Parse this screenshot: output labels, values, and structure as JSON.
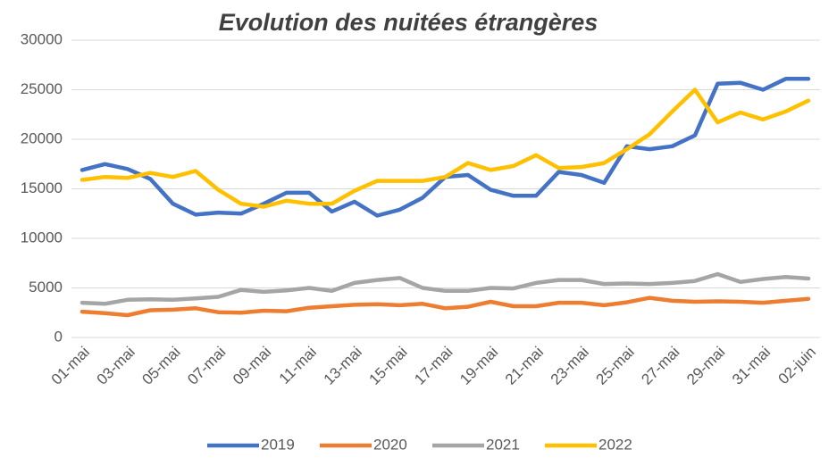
{
  "chart_data": {
    "type": "line",
    "title": "Evolution des nuitées étrangères",
    "categories": [
      "01-mai",
      null,
      "03-mai",
      null,
      "05-mai",
      null,
      "07-mai",
      null,
      "09-mai",
      null,
      "11-mai",
      null,
      "13-mai",
      null,
      "15-mai",
      null,
      "17-mai",
      null,
      "19-mai",
      null,
      "21-mai",
      null,
      "23-mai",
      null,
      "25-mai",
      null,
      "27-mai",
      null,
      "29-mai",
      null,
      "31-mai",
      null,
      "02-juin"
    ],
    "series": [
      {
        "name": "2019",
        "color": "#4472c4",
        "values": [
          16900,
          17500,
          17000,
          16000,
          13500,
          12400,
          12600,
          12500,
          13500,
          14600,
          14600,
          12700,
          13700,
          12300,
          12900,
          14100,
          16200,
          16400,
          14900,
          14300,
          14300,
          16700,
          16400,
          15600,
          19300,
          19000,
          19300,
          20400,
          25600,
          25700,
          25000,
          26100,
          26100
        ]
      },
      {
        "name": "2020",
        "color": "#ed7d31",
        "values": [
          2600,
          2450,
          2250,
          2750,
          2800,
          2950,
          2550,
          2500,
          2700,
          2650,
          3000,
          3150,
          3300,
          3350,
          3250,
          3400,
          2950,
          3100,
          3600,
          3150,
          3150,
          3500,
          3500,
          3250,
          3550,
          4000,
          3700,
          3600,
          3650,
          3600,
          3500,
          3700,
          3900
        ]
      },
      {
        "name": "2021",
        "color": "#a5a5a5",
        "values": [
          3500,
          3400,
          3800,
          3850,
          3800,
          3950,
          4100,
          4800,
          4600,
          4750,
          5000,
          4700,
          5500,
          5800,
          6000,
          5000,
          4700,
          4700,
          5000,
          4950,
          5500,
          5800,
          5800,
          5400,
          5450,
          5400,
          5500,
          5700,
          6400,
          5600,
          5900,
          6100,
          5950
        ]
      },
      {
        "name": "2022",
        "color": "#ffc000",
        "values": [
          15900,
          16200,
          16100,
          16600,
          16200,
          16800,
          14900,
          13500,
          13200,
          13800,
          13500,
          13500,
          14800,
          15800,
          15800,
          15800,
          16200,
          17600,
          16900,
          17300,
          18400,
          17100,
          17200,
          17600,
          19000,
          20500,
          22800,
          25000,
          21700,
          22700,
          22000,
          22800,
          23900
        ]
      }
    ],
    "ylim": [
      0,
      30000
    ],
    "yticks": [
      0,
      5000,
      10000,
      15000,
      20000,
      25000,
      30000
    ],
    "grid": true,
    "legend": "bottom"
  }
}
